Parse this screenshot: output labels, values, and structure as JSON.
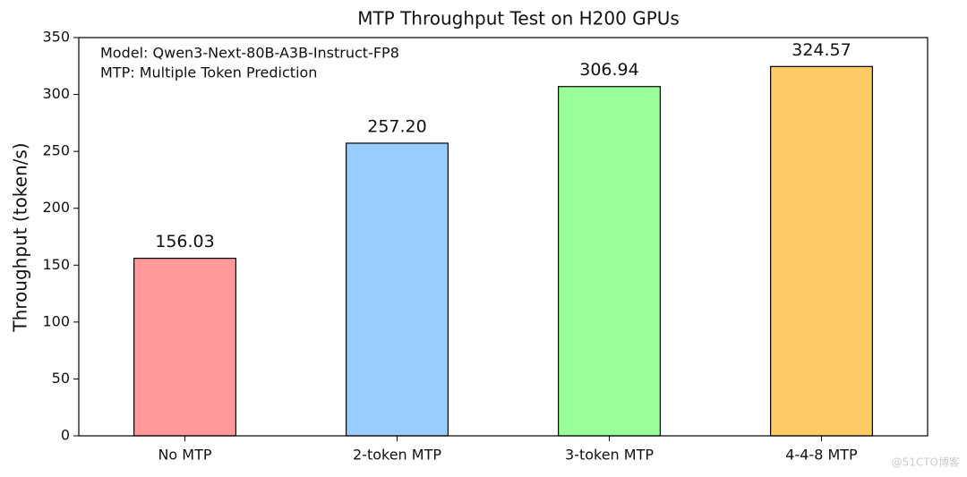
{
  "chart_data": {
    "type": "bar",
    "title": "MTP Throughput Test on H200 GPUs",
    "ylabel": "Throughput (token/s)",
    "annotations": [
      "Model: Qwen3-Next-80B-A3B-Instruct-FP8",
      "MTP: Multiple Token Prediction"
    ],
    "categories": [
      "No MTP",
      "2-token MTP",
      "3-token MTP",
      "4-4-8 MTP"
    ],
    "values": [
      156.03,
      257.2,
      306.94,
      324.57
    ],
    "value_labels": [
      "156.03",
      "257.20",
      "306.94",
      "324.57"
    ],
    "colors": [
      "#ff9999",
      "#99ccff",
      "#99ff99",
      "#ffc966"
    ],
    "ylim": [
      0,
      350
    ],
    "yticks": [
      0,
      50,
      100,
      150,
      200,
      250,
      300,
      350
    ],
    "grid": false
  },
  "watermark": "@51CTO博客"
}
